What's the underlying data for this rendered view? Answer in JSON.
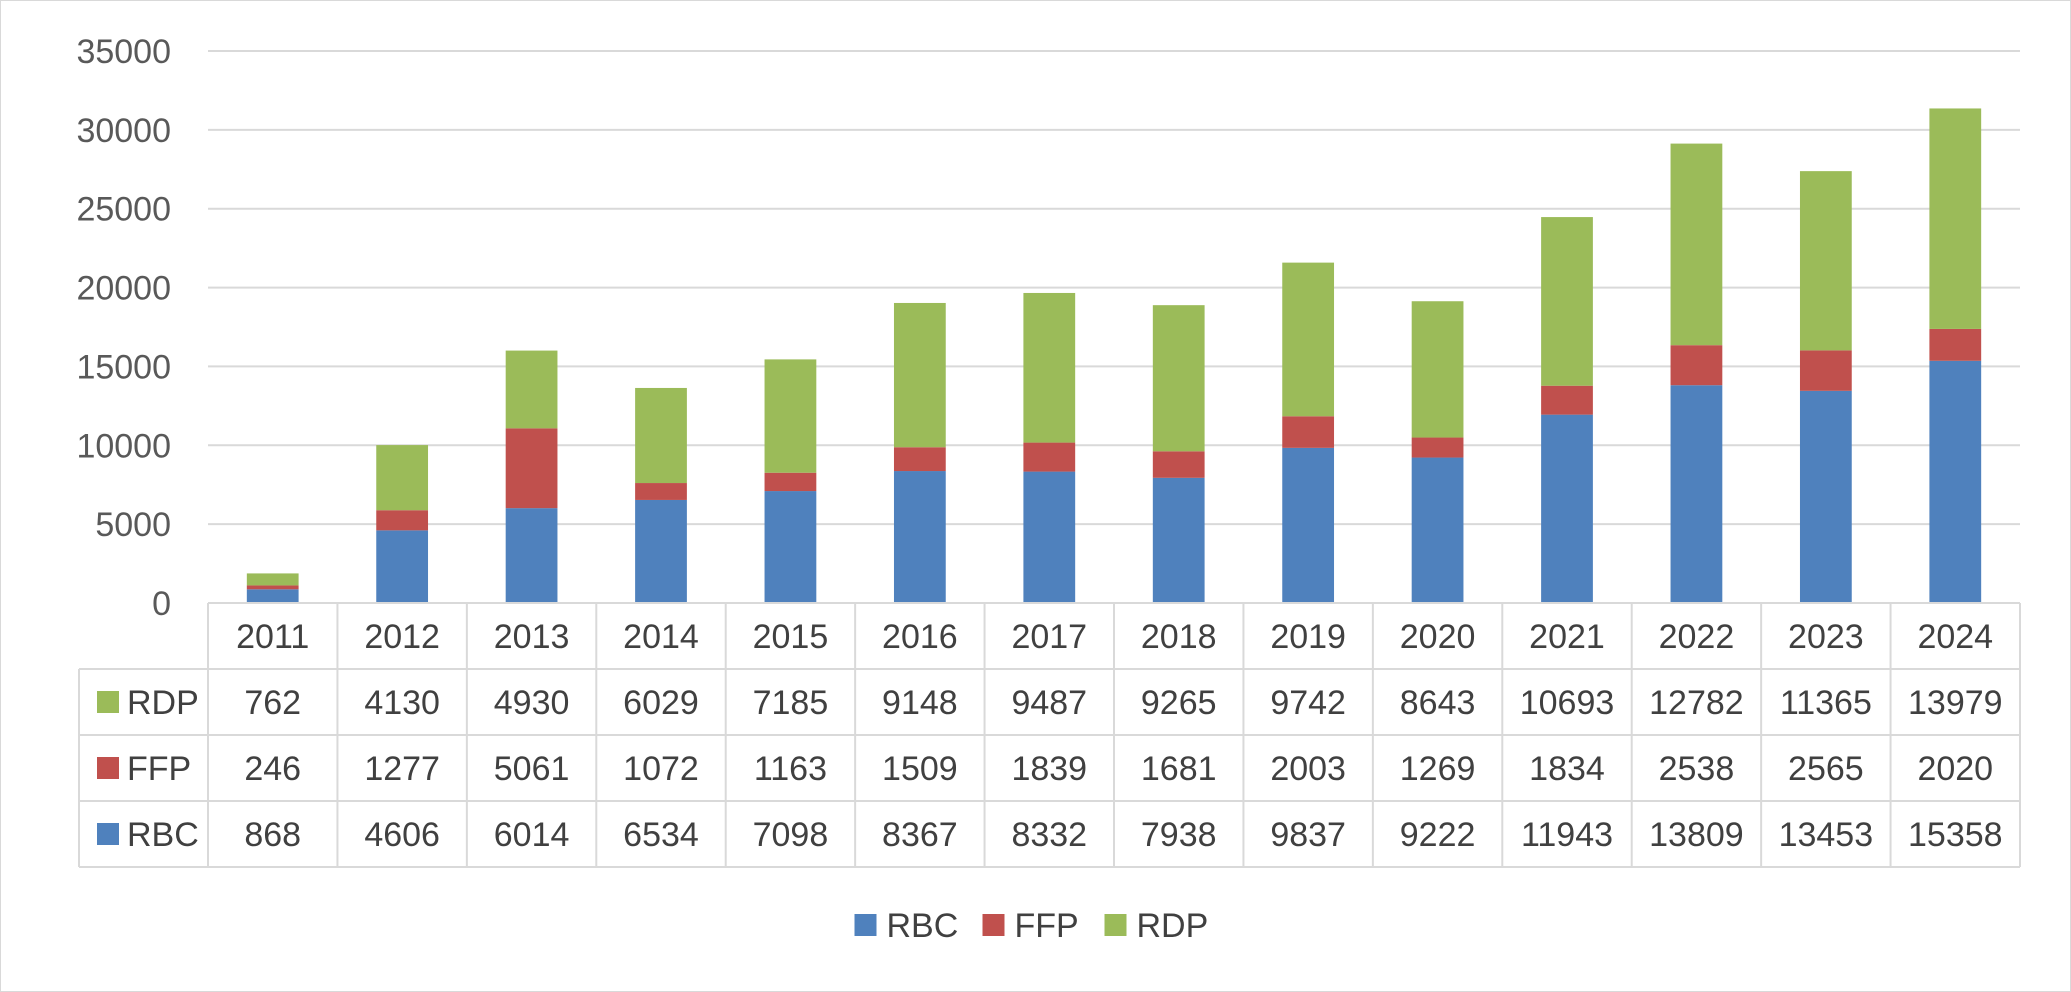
{
  "chart_data": {
    "type": "bar",
    "stacked": true,
    "title": "",
    "xlabel": "",
    "ylabel": "",
    "ylim": [
      0,
      35000
    ],
    "yticks": [
      0,
      5000,
      10000,
      15000,
      20000,
      25000,
      30000,
      35000
    ],
    "grid": true,
    "categories": [
      "2011",
      "2012",
      "2013",
      "2014",
      "2015",
      "2016",
      "2017",
      "2018",
      "2019",
      "2020",
      "2021",
      "2022",
      "2023",
      "2024"
    ],
    "series": [
      {
        "name": "RBC",
        "color": "#4f81bd",
        "values": [
          868,
          4606,
          6014,
          6534,
          7098,
          8367,
          8332,
          7938,
          9837,
          9222,
          11943,
          13809,
          13453,
          15358
        ]
      },
      {
        "name": "FFP",
        "color": "#c0504d",
        "values": [
          246,
          1277,
          5061,
          1072,
          1163,
          1509,
          1839,
          1681,
          2003,
          1269,
          1834,
          2538,
          2565,
          2020
        ]
      },
      {
        "name": "RDP",
        "color": "#9bbb59",
        "values": [
          762,
          4130,
          4930,
          6029,
          7185,
          9148,
          9487,
          9265,
          9742,
          8643,
          10693,
          12782,
          11365,
          13979
        ]
      }
    ],
    "data_table": {
      "row_order": [
        "RDP",
        "FFP",
        "RBC"
      ]
    },
    "legend": {
      "position": "bottom",
      "order": [
        "RBC",
        "FFP",
        "RDP"
      ]
    }
  }
}
